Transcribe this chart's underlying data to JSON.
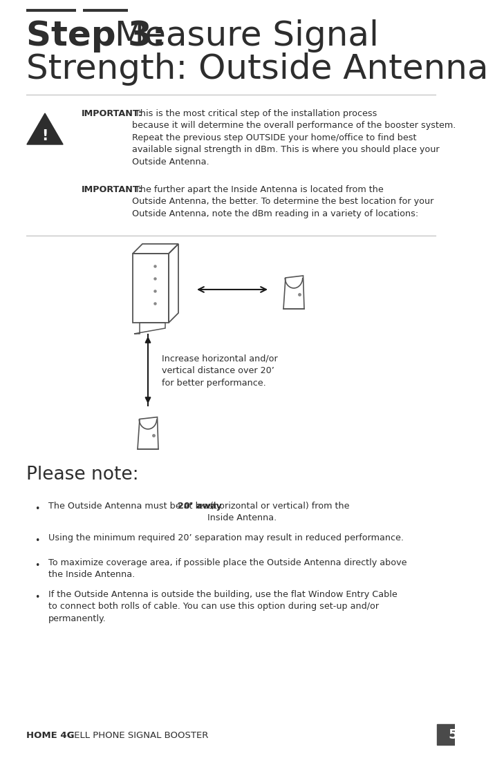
{
  "bg_color": "#ffffff",
  "text_color": "#2d2d2d",
  "footer_bg": "#4a4a4a",
  "title_bold": "Step 3: ",
  "title_line2": "Strength: Outside Antenna",
  "title_line1_normal": "Measure Signal",
  "important1_bold": "IMPORTANT:",
  "important1_text": " This is the most critical step of the installation process\nbecause it will determine the overall performance of the booster system.\nRepeat the previous step OUTSIDE your home/office to find best\navailable signal strength in dBm. This is where you should place your\nOutside Antenna.",
  "important2_bold": "IMPORTANT:",
  "important2_text": " The further apart the Inside Antenna is located from the\nOutside Antenna, the better. To determine the best location for your\nOutside Antenna, note the dBm reading in a variety of locations:",
  "diagram_caption": "Increase horizontal and/or\nvertical distance over 20’\nfor better performance.",
  "please_note": "Please note:",
  "bullet1_pre": "The Outside Antenna must be at least ",
  "bullet1_bold": "20’ away",
  "bullet1_post": " (horizontal or vertical) from the\nInside Antenna.",
  "bullet2": "Using the minimum required 20’ separation may result in reduced performance.",
  "bullet3": "To maximize coverage area, if possible place the Outside Antenna directly above\nthe Inside Antenna.",
  "bullet4": "If the Outside Antenna is outside the building, use the flat Window Entry Cable\nto connect both rolls of cable. You can use this option during set-up and/or\npermanently.",
  "footer_bold": "HOME 4G",
  "footer_normal": "    CELL PHONE SIGNAL BOOSTER",
  "page_number": "5"
}
